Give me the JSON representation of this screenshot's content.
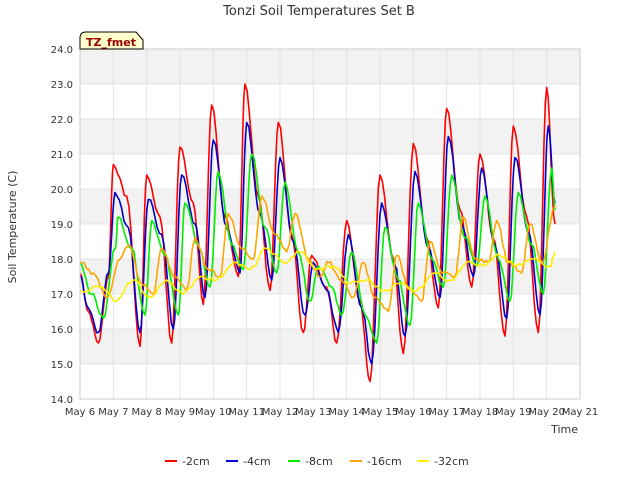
{
  "chart_data": {
    "type": "line",
    "title": "Tonzi Soil Temperatures Set B",
    "xlabel": "Time",
    "ylabel": "Soil Temperature (C)",
    "badge": "TZ_fmet",
    "ylim": [
      14.0,
      24.0
    ],
    "xlim": [
      6,
      21
    ],
    "yticks": [
      "14.0",
      "15.0",
      "16.0",
      "17.0",
      "18.0",
      "19.0",
      "20.0",
      "21.0",
      "22.0",
      "23.0",
      "24.0"
    ],
    "xticks": [
      "May 6",
      "May 7",
      "May 8",
      "May 9",
      "May 10",
      "May 11",
      "May 12",
      "May 13",
      "May 14",
      "May 15",
      "May 16",
      "May 17",
      "May 18",
      "May 19",
      "May 20",
      "May 21"
    ],
    "grid": true,
    "legend_position": "bottom",
    "colors": {
      "-2cm": "#ff0000",
      "-4cm": "#0000cc",
      "-8cm": "#00ee00",
      "-16cm": "#ffa500",
      "-32cm": "#ffee00"
    },
    "series": [
      {
        "name": "-2cm",
        "x": [
          6.0,
          6.25,
          6.55,
          6.85,
          7.0,
          7.4,
          7.8,
          8.0,
          8.4,
          8.75,
          9.0,
          9.4,
          9.7,
          9.95,
          10.35,
          10.75,
          10.95,
          11.35,
          11.7,
          11.95,
          12.35,
          12.7,
          12.95,
          13.4,
          13.7,
          14.0,
          14.4,
          14.7,
          15.0,
          15.4,
          15.7,
          16.0,
          16.4,
          16.75,
          17.0,
          17.4,
          17.75,
          18.0,
          18.4,
          18.75,
          19.0,
          19.4,
          19.75,
          20.0,
          20.25
        ],
        "values": [
          17.6,
          16.5,
          15.6,
          17.5,
          20.7,
          19.8,
          15.5,
          20.4,
          19.2,
          15.6,
          21.2,
          19.6,
          16.7,
          22.4,
          19.2,
          17.5,
          23.0,
          19.8,
          17.1,
          21.9,
          18.7,
          15.9,
          18.1,
          17.2,
          15.6,
          19.1,
          16.8,
          14.5,
          20.4,
          18.0,
          15.3,
          21.3,
          18.6,
          16.6,
          22.3,
          19.4,
          17.2,
          21.0,
          18.6,
          15.8,
          21.8,
          19.2,
          15.9,
          22.9,
          19.0
        ]
      },
      {
        "name": "-4cm",
        "x": [
          6.0,
          6.25,
          6.55,
          6.85,
          7.05,
          7.45,
          7.8,
          8.05,
          8.45,
          8.8,
          9.05,
          9.45,
          9.75,
          10.0,
          10.4,
          10.8,
          11.0,
          11.4,
          11.75,
          12.0,
          12.4,
          12.75,
          13.0,
          13.4,
          13.75,
          14.05,
          14.45,
          14.75,
          15.05,
          15.45,
          15.75,
          16.05,
          16.45,
          16.8,
          17.05,
          17.45,
          17.8,
          18.05,
          18.45,
          18.8,
          19.05,
          19.45,
          19.8,
          20.05,
          20.25
        ],
        "values": [
          17.5,
          16.6,
          15.9,
          17.6,
          19.9,
          18.9,
          15.9,
          19.7,
          18.7,
          16.0,
          20.4,
          19.0,
          16.9,
          21.4,
          18.9,
          17.6,
          21.9,
          19.3,
          17.4,
          20.9,
          18.5,
          16.4,
          17.9,
          17.1,
          15.9,
          18.7,
          16.6,
          15.0,
          19.6,
          17.8,
          15.8,
          20.5,
          18.3,
          16.9,
          21.5,
          19.0,
          17.5,
          20.6,
          18.4,
          16.3,
          20.9,
          18.8,
          16.4,
          21.8,
          19.6
        ]
      },
      {
        "name": "-8cm",
        "x": [
          6.0,
          6.35,
          6.7,
          7.05,
          7.15,
          7.55,
          7.95,
          8.15,
          8.55,
          8.95,
          9.15,
          9.55,
          9.9,
          10.15,
          10.55,
          10.9,
          11.15,
          11.55,
          11.9,
          12.15,
          12.55,
          12.9,
          13.15,
          13.55,
          13.85,
          14.15,
          14.55,
          14.9,
          15.15,
          15.55,
          15.9,
          16.15,
          16.55,
          16.9,
          17.15,
          17.55,
          17.9,
          18.15,
          18.55,
          18.9,
          19.15,
          19.55,
          19.9,
          20.15,
          20.25
        ],
        "values": [
          17.9,
          17.0,
          16.3,
          18.3,
          19.2,
          18.3,
          16.4,
          19.1,
          18.1,
          16.4,
          19.6,
          18.4,
          17.2,
          20.5,
          18.4,
          17.7,
          21.0,
          18.9,
          17.6,
          20.2,
          18.2,
          16.8,
          17.8,
          17.2,
          16.4,
          18.2,
          16.4,
          15.6,
          18.9,
          17.4,
          16.1,
          19.6,
          18.0,
          17.2,
          20.4,
          18.6,
          17.8,
          19.8,
          18.0,
          16.8,
          19.9,
          18.4,
          17.0,
          20.6,
          19.4
        ]
      },
      {
        "name": "-16cm",
        "x": [
          6.0,
          6.4,
          6.8,
          7.2,
          7.45,
          7.85,
          8.2,
          8.45,
          8.85,
          9.2,
          9.45,
          9.85,
          10.2,
          10.45,
          10.85,
          11.2,
          11.45,
          11.85,
          12.2,
          12.45,
          12.85,
          13.2,
          13.45,
          13.85,
          14.2,
          14.5,
          14.85,
          15.25,
          15.5,
          15.85,
          16.25,
          16.5,
          16.85,
          17.25,
          17.5,
          17.85,
          18.25,
          18.5,
          18.85,
          19.25,
          19.5,
          19.85,
          20.25
        ],
        "values": [
          17.9,
          17.6,
          16.9,
          18.0,
          18.4,
          17.3,
          17.0,
          18.3,
          17.5,
          17.1,
          18.6,
          17.7,
          17.5,
          19.3,
          18.3,
          18.0,
          19.8,
          18.7,
          18.2,
          19.3,
          18.0,
          17.5,
          17.9,
          17.4,
          16.9,
          17.9,
          16.9,
          16.5,
          18.1,
          17.2,
          16.8,
          18.5,
          17.6,
          17.5,
          19.2,
          18.0,
          17.9,
          19.1,
          17.9,
          17.6,
          19.0,
          17.9,
          19.5
        ]
      },
      {
        "name": "-32cm",
        "x": [
          6.0,
          6.6,
          7.1,
          7.6,
          8.1,
          8.6,
          9.1,
          9.6,
          10.1,
          10.6,
          11.1,
          11.6,
          12.1,
          12.6,
          13.1,
          13.6,
          14.1,
          14.6,
          15.1,
          15.6,
          16.1,
          16.6,
          17.1,
          17.6,
          18.1,
          18.6,
          19.1,
          19.6,
          20.1,
          20.25
        ],
        "values": [
          17.1,
          17.2,
          16.8,
          17.4,
          16.9,
          17.4,
          17.0,
          17.5,
          17.4,
          17.9,
          17.7,
          18.3,
          17.9,
          18.2,
          17.7,
          17.8,
          17.3,
          17.4,
          17.1,
          17.3,
          17.1,
          17.6,
          17.4,
          17.9,
          17.8,
          18.1,
          17.8,
          18.0,
          17.8,
          18.2
        ]
      }
    ]
  }
}
